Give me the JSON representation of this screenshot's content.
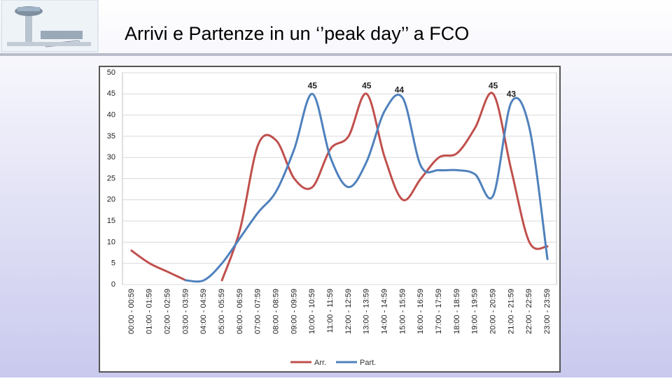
{
  "chart_data": {
    "type": "line",
    "title": "Arrivi e Partenze in un ‘’peak day’’ a FCO",
    "categories": [
      "00:00 - 00:59",
      "01:00 - 01:59",
      "02:00 - 02:59",
      "03:00 - 03:59",
      "04:00 - 04:59",
      "05:00 - 05:59",
      "06:00 - 06:59",
      "07:00 - 07:59",
      "08:00 - 08:59",
      "09:00 - 09:59",
      "10:00 - 10:59",
      "11:00 - 11:59",
      "12:00 - 12:59",
      "13:00 - 13:59",
      "14:00 - 14:59",
      "15:00 - 15:59",
      "16:00 - 16:59",
      "17:00 - 17:59",
      "18:00 - 18:59",
      "19:00 - 19:59",
      "20:00 - 20:59",
      "21:00 - 21:59",
      "22:00 - 22:59",
      "23:00 - 23:59"
    ],
    "series": [
      {
        "name": "Arr.",
        "color": "#c0504d",
        "values": [
          8,
          5,
          3,
          1,
          null,
          1,
          13,
          33,
          34,
          25,
          23,
          32,
          35,
          45,
          30,
          20,
          25,
          30,
          31,
          37,
          45,
          27,
          10,
          9
        ]
      },
      {
        "name": "Part.",
        "color": "#4f81bd",
        "values": [
          null,
          null,
          null,
          1,
          1,
          5,
          11,
          17,
          22,
          32,
          45,
          30,
          23,
          29,
          41,
          44,
          28,
          27,
          27,
          26,
          21,
          43,
          37,
          6
        ]
      }
    ],
    "ylim": [
      0,
      50
    ],
    "yticks": [
      0,
      5,
      10,
      15,
      20,
      25,
      30,
      35,
      40,
      45,
      50
    ],
    "grid": true,
    "legend": "bottom"
  }
}
